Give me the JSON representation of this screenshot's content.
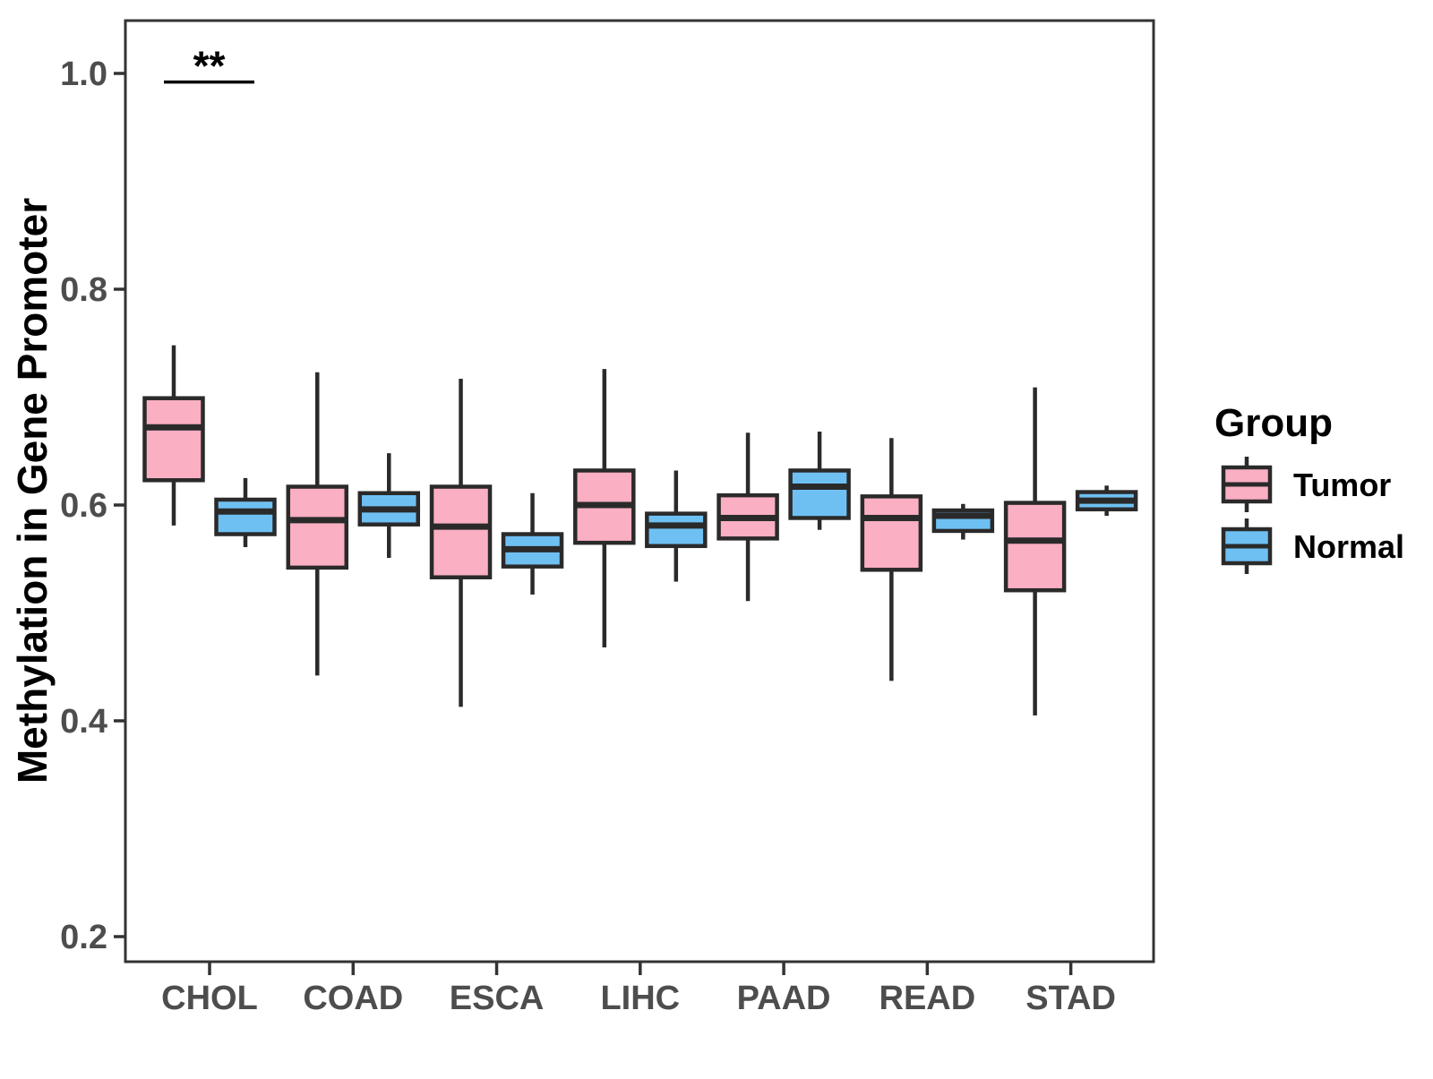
{
  "chart_data": {
    "type": "boxplot",
    "title": "",
    "ylabel": "Methylation in Gene Promoter",
    "xlabel": "",
    "categories": [
      "CHOL",
      "COAD",
      "ESCA",
      "LIHC",
      "PAAD",
      "READ",
      "STAD"
    ],
    "yticks": [
      0.2,
      0.4,
      0.6,
      0.8,
      1.0
    ],
    "ytick_labels": [
      "0.2",
      "0.4",
      "0.6",
      "0.8",
      "1.0"
    ],
    "ylim": [
      0.177,
      1.049
    ],
    "grid": "off",
    "series": [
      {
        "name": "Tumor",
        "fill_color": "#FAAFC2",
        "boxes": [
          {
            "category": "CHOL",
            "whisker_low": 0.581,
            "q1": 0.623,
            "median": 0.672,
            "q3": 0.699,
            "whisker_high": 0.748
          },
          {
            "category": "COAD",
            "whisker_low": 0.442,
            "q1": 0.542,
            "median": 0.586,
            "q3": 0.617,
            "whisker_high": 0.723
          },
          {
            "category": "ESCA",
            "whisker_low": 0.413,
            "q1": 0.533,
            "median": 0.58,
            "q3": 0.617,
            "whisker_high": 0.717
          },
          {
            "category": "LIHC",
            "whisker_low": 0.468,
            "q1": 0.565,
            "median": 0.6,
            "q3": 0.632,
            "whisker_high": 0.726
          },
          {
            "category": "PAAD",
            "whisker_low": 0.511,
            "q1": 0.569,
            "median": 0.588,
            "q3": 0.609,
            "whisker_high": 0.667
          },
          {
            "category": "READ",
            "whisker_low": 0.437,
            "q1": 0.54,
            "median": 0.588,
            "q3": 0.608,
            "whisker_high": 0.662
          },
          {
            "category": "STAD",
            "whisker_low": 0.405,
            "q1": 0.521,
            "median": 0.567,
            "q3": 0.602,
            "whisker_high": 0.709
          }
        ]
      },
      {
        "name": "Normal",
        "fill_color": "#6FC0F2",
        "boxes": [
          {
            "category": "CHOL",
            "whisker_low": 0.561,
            "q1": 0.573,
            "median": 0.594,
            "q3": 0.605,
            "whisker_high": 0.625
          },
          {
            "category": "COAD",
            "whisker_low": 0.551,
            "q1": 0.582,
            "median": 0.596,
            "q3": 0.611,
            "whisker_high": 0.648
          },
          {
            "category": "ESCA",
            "whisker_low": 0.517,
            "q1": 0.543,
            "median": 0.559,
            "q3": 0.573,
            "whisker_high": 0.611
          },
          {
            "category": "LIHC",
            "whisker_low": 0.529,
            "q1": 0.562,
            "median": 0.581,
            "q3": 0.592,
            "whisker_high": 0.632
          },
          {
            "category": "PAAD",
            "whisker_low": 0.577,
            "q1": 0.588,
            "median": 0.617,
            "q3": 0.632,
            "whisker_high": 0.668
          },
          {
            "category": "READ",
            "whisker_low": 0.568,
            "q1": 0.576,
            "median": 0.59,
            "q3": 0.595,
            "whisker_high": 0.601
          },
          {
            "category": "STAD",
            "whisker_low": 0.59,
            "q1": 0.596,
            "median": 0.604,
            "q3": 0.612,
            "whisker_high": 0.618
          }
        ]
      }
    ],
    "annotations": [
      {
        "text": "**",
        "category": "CHOL",
        "between": [
          "Tumor",
          "Normal"
        ],
        "y": 0.992
      }
    ],
    "legend": {
      "title": "Group",
      "position": "right",
      "entries": [
        {
          "label": "Tumor",
          "fill_color": "#FAAFC2"
        },
        {
          "label": "Normal",
          "fill_color": "#6FC0F2"
        }
      ]
    },
    "colors": {
      "box_stroke": "#2A2A2A",
      "panel_border": "#333333",
      "tick_label": "#4D4D4D",
      "axis_title": "#000000",
      "annotation": "#000000",
      "background": "#FFFFFF"
    }
  }
}
